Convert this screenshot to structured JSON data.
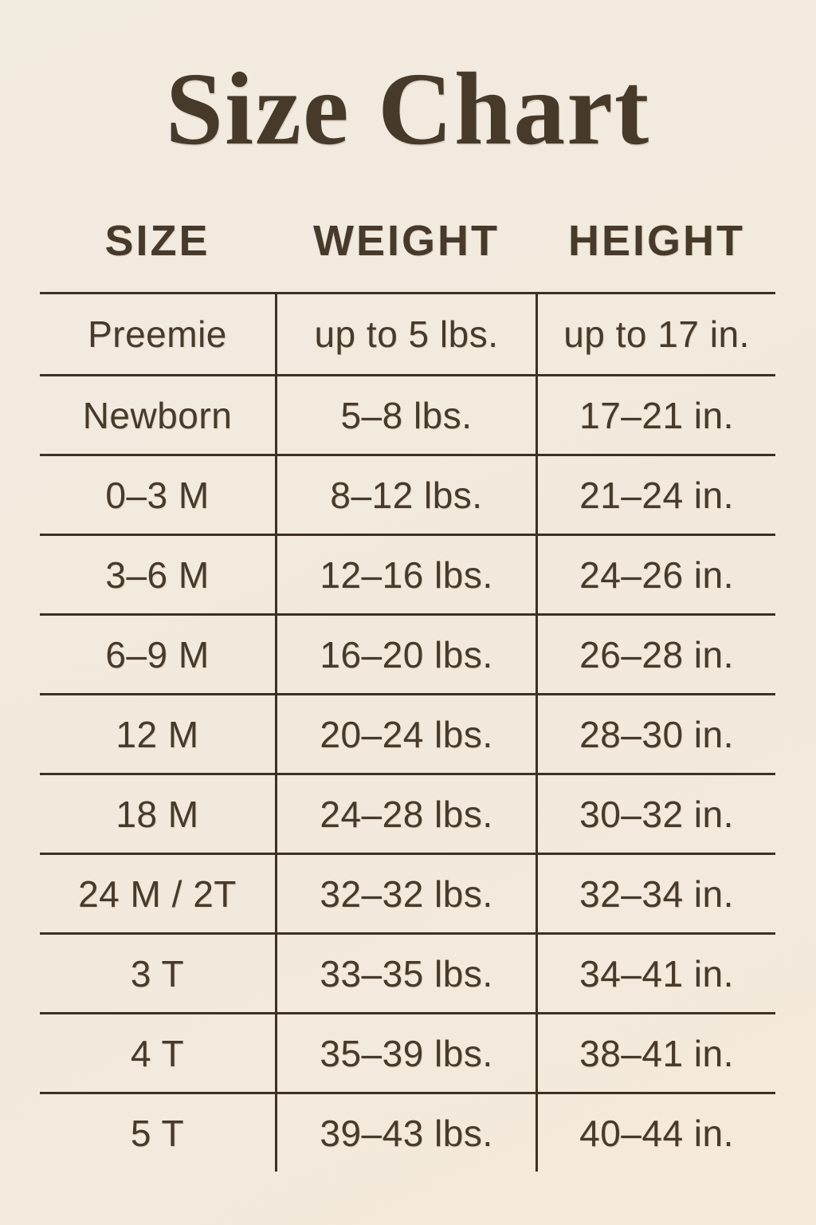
{
  "chart_data": {
    "type": "table",
    "title": "Size Chart",
    "columns": [
      "SIZE",
      "WEIGHT",
      "HEIGHT"
    ],
    "rows": [
      [
        "Preemie",
        "up to 5 lbs.",
        "up to 17 in."
      ],
      [
        "Newborn",
        "5–8 lbs.",
        "17–21 in."
      ],
      [
        "0–3 M",
        "8–12 lbs.",
        "21–24 in."
      ],
      [
        "3–6 M",
        "12–16 lbs.",
        "24–26 in."
      ],
      [
        "6–9 M",
        "16–20 lbs.",
        "26–28 in."
      ],
      [
        "12 M",
        "20–24 lbs.",
        "28–30 in."
      ],
      [
        "18 M",
        "24–28 lbs.",
        "30–32 in."
      ],
      [
        "24 M / 2T",
        "32–32 lbs.",
        "32–34 in."
      ],
      [
        "3 T",
        "33–35 lbs.",
        "34–41 in."
      ],
      [
        "4 T",
        "35–39 lbs.",
        "38–41 in."
      ],
      [
        "5 T",
        "39–43 lbs.",
        "40–44 in."
      ]
    ]
  },
  "colors": {
    "background": "#f2eade",
    "text": "#473a2a",
    "line": "#3d3123"
  }
}
